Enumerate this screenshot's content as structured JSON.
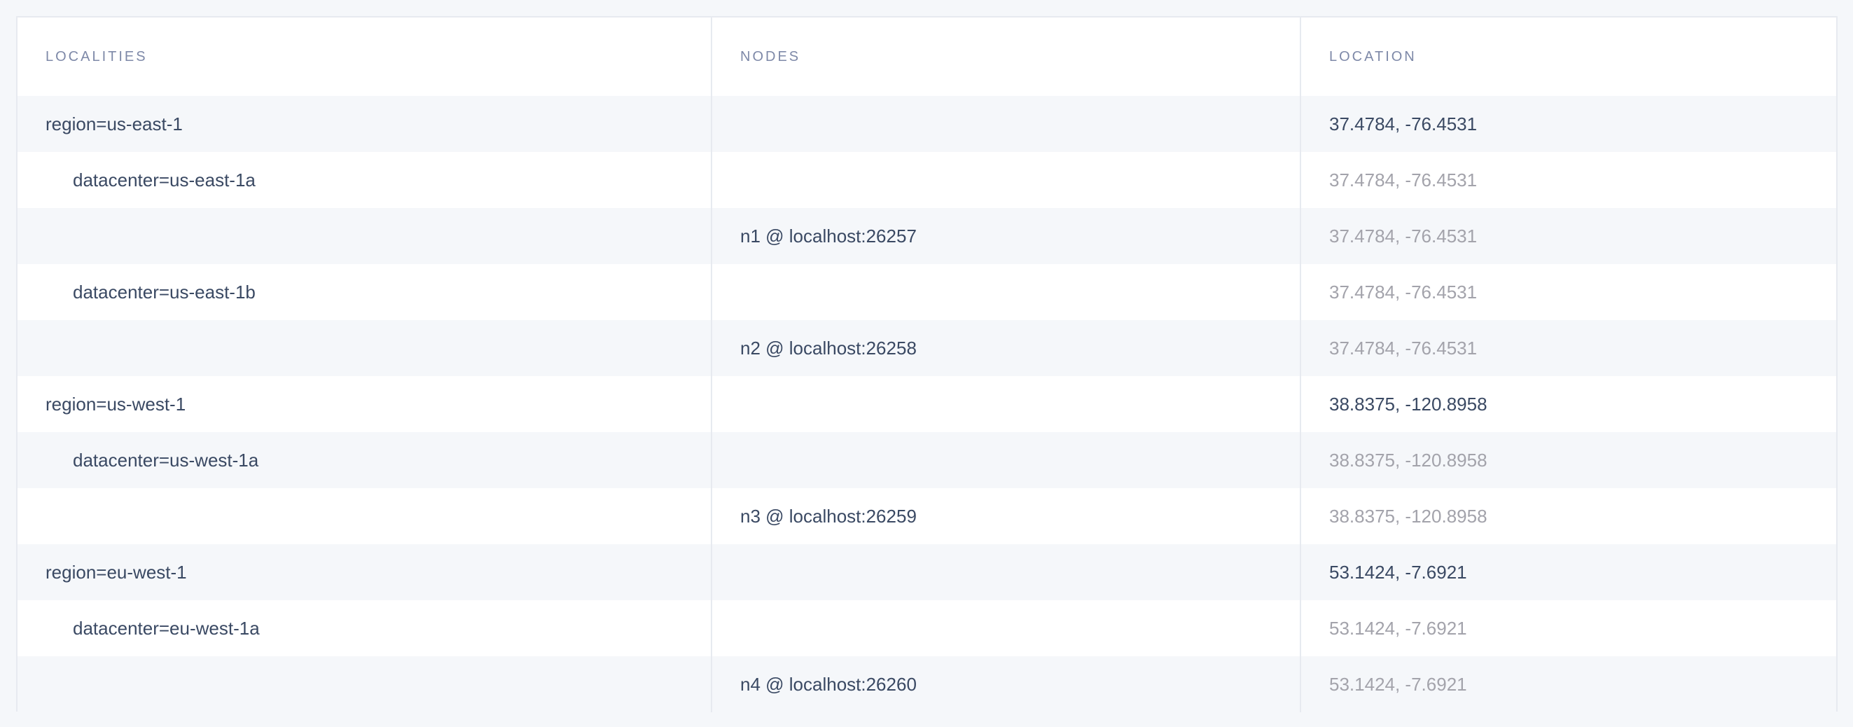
{
  "columns": [
    "LOCALITIES",
    "NODES",
    "LOCATION"
  ],
  "rows": [
    {
      "locality": "region=us-east-1",
      "level": 0,
      "node": "",
      "location": "37.4784, -76.4531",
      "location_muted": false
    },
    {
      "locality": "datacenter=us-east-1a",
      "level": 1,
      "node": "",
      "location": "37.4784, -76.4531",
      "location_muted": true
    },
    {
      "locality": "",
      "level": 2,
      "node": "n1 @ localhost:26257",
      "location": "37.4784, -76.4531",
      "location_muted": true
    },
    {
      "locality": "datacenter=us-east-1b",
      "level": 1,
      "node": "",
      "location": "37.4784, -76.4531",
      "location_muted": true
    },
    {
      "locality": "",
      "level": 2,
      "node": "n2 @ localhost:26258",
      "location": "37.4784, -76.4531",
      "location_muted": true
    },
    {
      "locality": "region=us-west-1",
      "level": 0,
      "node": "",
      "location": "38.8375, -120.8958",
      "location_muted": false
    },
    {
      "locality": "datacenter=us-west-1a",
      "level": 1,
      "node": "",
      "location": "38.8375, -120.8958",
      "location_muted": true
    },
    {
      "locality": "",
      "level": 2,
      "node": "n3 @ localhost:26259",
      "location": "38.8375, -120.8958",
      "location_muted": true
    },
    {
      "locality": "region=eu-west-1",
      "level": 0,
      "node": "",
      "location": "53.1424, -7.6921",
      "location_muted": false
    },
    {
      "locality": "datacenter=eu-west-1a",
      "level": 1,
      "node": "",
      "location": "53.1424, -7.6921",
      "location_muted": true
    },
    {
      "locality": "",
      "level": 2,
      "node": "n4 @ localhost:26260",
      "location": "53.1424, -7.6921",
      "location_muted": true
    }
  ],
  "colors": {
    "text": "#3a4963",
    "header": "#7e89a8",
    "muted": "#a3a3ab",
    "stripe": "#f5f7fa"
  }
}
